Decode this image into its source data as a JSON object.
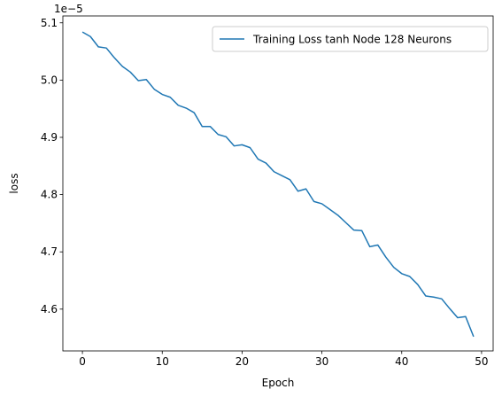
{
  "chart_data": {
    "type": "line",
    "title": "",
    "xlabel": "Epoch",
    "ylabel": "loss",
    "y_offset_text": "1e−5",
    "xlim": [
      -2.45,
      51.45
    ],
    "ylim": [
      4.527,
      5.112
    ],
    "x_ticks": [
      0,
      10,
      20,
      30,
      40,
      50
    ],
    "x_tick_labels": [
      "0",
      "10",
      "20",
      "30",
      "40",
      "50"
    ],
    "y_ticks": [
      4.6,
      4.7,
      4.8,
      4.9,
      5.0,
      5.1
    ],
    "y_tick_labels": [
      "4.6",
      "4.7",
      "4.8",
      "4.9",
      "5.0",
      "5.1"
    ],
    "grid": false,
    "legend_position": "top-right",
    "series": [
      {
        "name": "Training Loss tanh Node 128 Neurons",
        "color": "#1f77b4",
        "x": [
          0,
          1,
          2,
          3,
          4,
          5,
          6,
          7,
          8,
          9,
          10,
          11,
          12,
          13,
          14,
          15,
          16,
          17,
          18,
          19,
          20,
          21,
          22,
          23,
          24,
          25,
          26,
          27,
          28,
          29,
          30,
          31,
          32,
          33,
          34,
          35,
          36,
          37,
          38,
          39,
          40,
          41,
          42,
          43,
          44,
          45,
          46,
          47,
          48,
          49
        ],
        "y": [
          5.084,
          5.076,
          5.058,
          5.056,
          5.039,
          5.024,
          5.014,
          4.999,
          5.001,
          4.984,
          4.975,
          4.97,
          4.956,
          4.951,
          4.943,
          4.919,
          4.919,
          4.905,
          4.901,
          4.885,
          4.887,
          4.882,
          4.862,
          4.855,
          4.84,
          4.833,
          4.826,
          4.806,
          4.81,
          4.788,
          4.784,
          4.774,
          4.764,
          4.751,
          4.738,
          4.737,
          4.709,
          4.712,
          4.691,
          4.673,
          4.662,
          4.657,
          4.643,
          4.623,
          4.621,
          4.618,
          4.601,
          4.585,
          4.587,
          4.552
        ]
      }
    ]
  }
}
